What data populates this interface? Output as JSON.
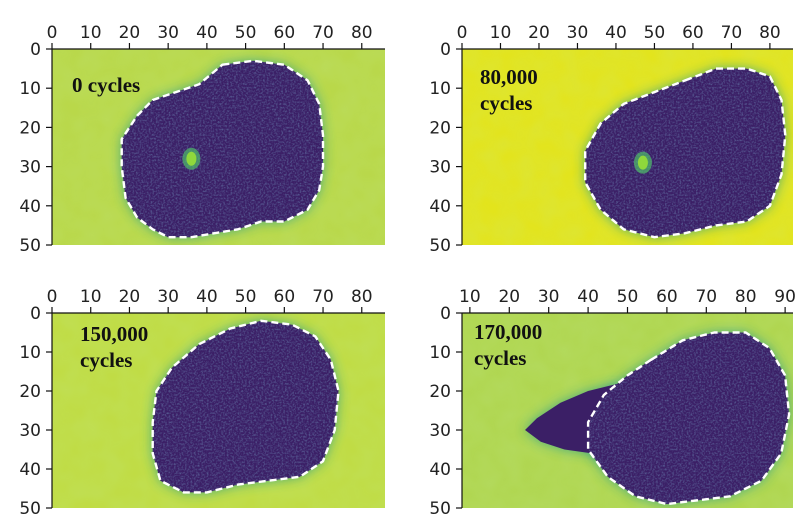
{
  "colors": {
    "background_panel_1": "#b9d84a",
    "background_panel_2": "#e3e41c",
    "background_panel_3": "#c0dc44",
    "background_panel_4": "#b0d650",
    "blob_fill": "#3b1f66",
    "blob_halo": "#2ea08a",
    "outline": "#ffffff"
  },
  "chart_data": [
    {
      "type": "heatmap",
      "colormap": "viridis",
      "annotation": "0 cycles",
      "xticks": [
        0,
        10,
        20,
        30,
        40,
        50,
        60,
        70,
        80
      ],
      "yticks": [
        0,
        10,
        20,
        30,
        40,
        50
      ],
      "xlim": [
        0,
        86
      ],
      "ylim": [
        50,
        0
      ],
      "contour_style": "white dashed",
      "contour": [
        [
          44,
          4
        ],
        [
          52,
          3
        ],
        [
          60,
          4
        ],
        [
          66,
          8
        ],
        [
          69,
          14
        ],
        [
          70,
          22
        ],
        [
          70,
          30
        ],
        [
          69,
          36
        ],
        [
          66,
          41
        ],
        [
          60,
          44
        ],
        [
          54,
          44
        ],
        [
          48,
          46
        ],
        [
          42,
          47
        ],
        [
          36,
          48
        ],
        [
          30,
          48
        ],
        [
          26,
          46
        ],
        [
          22,
          43
        ],
        [
          19,
          38
        ],
        [
          18,
          30
        ],
        [
          18,
          23
        ],
        [
          22,
          17
        ],
        [
          26,
          13
        ],
        [
          32,
          11
        ],
        [
          38,
          9
        ]
      ],
      "bright_spot": {
        "x": 36,
        "y": 28
      }
    },
    {
      "type": "heatmap",
      "colormap": "viridis",
      "annotation": "80,000\ncycles",
      "xticks": [
        0,
        10,
        20,
        30,
        40,
        50,
        60,
        70,
        80
      ],
      "yticks": [
        0,
        10,
        20,
        30,
        40,
        50
      ],
      "xlim": [
        0,
        86
      ],
      "ylim": [
        50,
        0
      ],
      "contour_style": "white dashed",
      "contour": [
        [
          58,
          8
        ],
        [
          66,
          5
        ],
        [
          74,
          5
        ],
        [
          80,
          7
        ],
        [
          83,
          13
        ],
        [
          84,
          22
        ],
        [
          83,
          32
        ],
        [
          80,
          40
        ],
        [
          74,
          44
        ],
        [
          66,
          45
        ],
        [
          58,
          47
        ],
        [
          50,
          48
        ],
        [
          42,
          46
        ],
        [
          36,
          41
        ],
        [
          32,
          34
        ],
        [
          32,
          26
        ],
        [
          36,
          19
        ],
        [
          42,
          14
        ],
        [
          50,
          11
        ]
      ],
      "bright_spot": {
        "x": 47,
        "y": 29
      }
    },
    {
      "type": "heatmap",
      "colormap": "viridis",
      "annotation": "150,000\ncycles",
      "xticks": [
        0,
        10,
        20,
        30,
        40,
        50,
        60,
        70,
        80
      ],
      "yticks": [
        0,
        10,
        20,
        30,
        40,
        50
      ],
      "xlim": [
        0,
        86
      ],
      "ylim": [
        50,
        0
      ],
      "contour_style": "white dashed",
      "contour": [
        [
          38,
          8
        ],
        [
          46,
          4
        ],
        [
          54,
          2
        ],
        [
          62,
          3
        ],
        [
          68,
          6
        ],
        [
          72,
          12
        ],
        [
          74,
          20
        ],
        [
          73,
          30
        ],
        [
          70,
          38
        ],
        [
          64,
          42
        ],
        [
          56,
          43
        ],
        [
          48,
          44
        ],
        [
          40,
          46
        ],
        [
          34,
          46
        ],
        [
          28,
          43
        ],
        [
          26,
          36
        ],
        [
          26,
          28
        ],
        [
          27,
          20
        ],
        [
          31,
          14
        ]
      ]
    },
    {
      "type": "heatmap",
      "colormap": "viridis",
      "annotation": "170,000\ncycles",
      "xticks": [
        10,
        20,
        30,
        40,
        50,
        60,
        70,
        80,
        90
      ],
      "yticks": [
        0,
        10,
        20,
        30,
        40,
        50
      ],
      "xlim": [
        8,
        92
      ],
      "ylim": [
        50,
        0
      ],
      "contour_style": "white dashed",
      "contour": [
        [
          56,
          12
        ],
        [
          64,
          7
        ],
        [
          72,
          5
        ],
        [
          80,
          5
        ],
        [
          86,
          9
        ],
        [
          90,
          16
        ],
        [
          91,
          26
        ],
        [
          89,
          36
        ],
        [
          84,
          43
        ],
        [
          76,
          47
        ],
        [
          68,
          48
        ],
        [
          60,
          49
        ],
        [
          52,
          47
        ],
        [
          45,
          42
        ],
        [
          40,
          35
        ],
        [
          40,
          28
        ],
        [
          44,
          21
        ],
        [
          50,
          16
        ]
      ],
      "tail": [
        [
          48,
          18
        ],
        [
          40,
          20
        ],
        [
          33,
          23
        ],
        [
          27,
          27
        ],
        [
          24,
          30
        ],
        [
          28,
          33
        ],
        [
          34,
          35
        ],
        [
          41,
          36
        ],
        [
          47,
          38
        ]
      ]
    }
  ]
}
